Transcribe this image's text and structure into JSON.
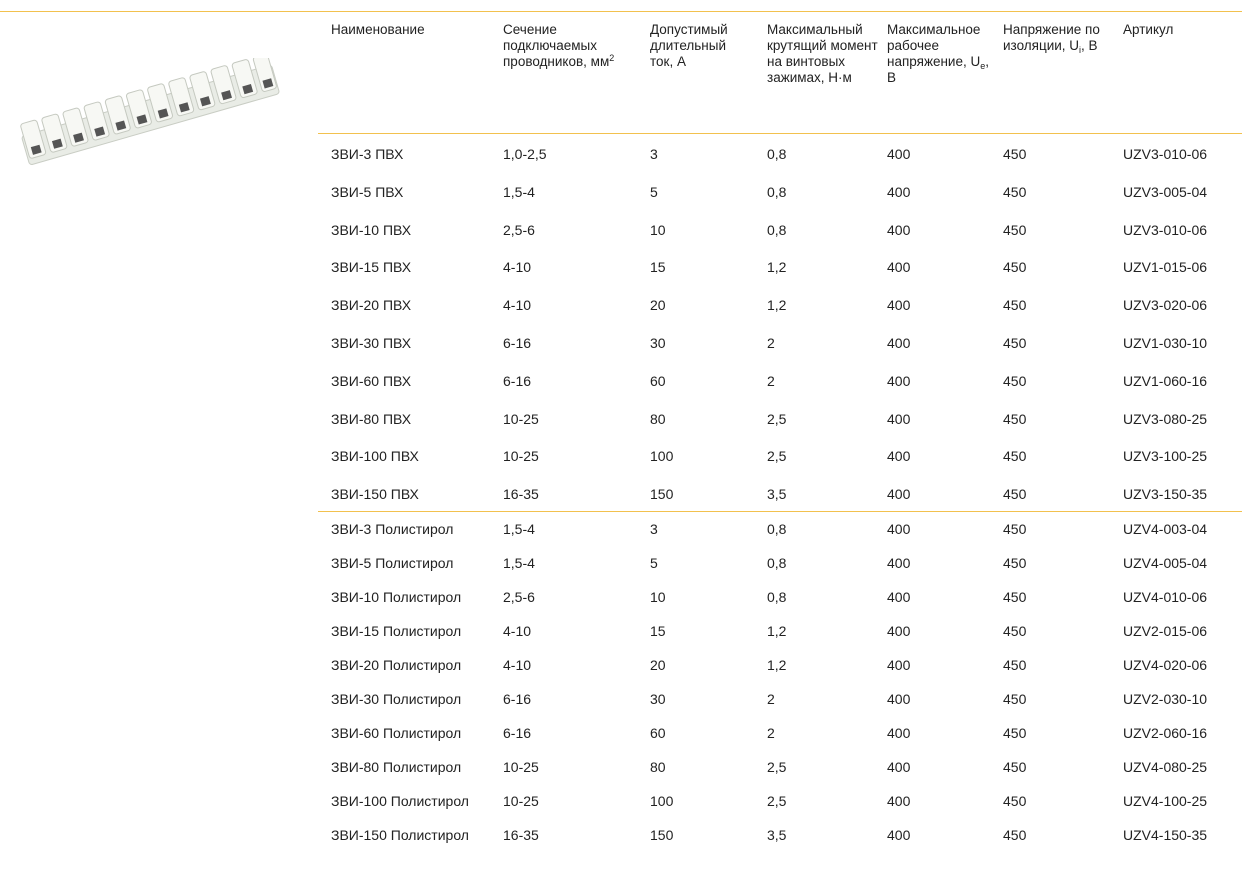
{
  "table": {
    "columns": [
      [
        "Наименование"
      ],
      [
        "Сечение подключаемых проводников, мм",
        "2"
      ],
      [
        "Допустимый длительный ток, А"
      ],
      [
        "Максимальный крутящий момент на винтовых зажимах, Н·м"
      ],
      [
        "Максимальное рабочее напряжение, U",
        "e",
        ", В"
      ],
      [
        "Напряжение по изоляции, U",
        "i",
        ", В"
      ],
      [
        "Артикул"
      ]
    ],
    "groups": [
      [
        [
          "ЗВИ-3 ПВХ",
          "1,0-2,5",
          "3",
          "0,8",
          "400",
          "450",
          "UZV3-010-06"
        ],
        [
          "ЗВИ-5 ПВХ",
          "1,5-4",
          "5",
          "0,8",
          "400",
          "450",
          "UZV3-005-04"
        ],
        [
          "ЗВИ-10 ПВХ",
          "2,5-6",
          "10",
          "0,8",
          "400",
          "450",
          "UZV3-010-06"
        ],
        [
          "ЗВИ-15 ПВХ",
          "4-10",
          "15",
          "1,2",
          "400",
          "450",
          "UZV1-015-06"
        ],
        [
          "ЗВИ-20 ПВХ",
          "4-10",
          "20",
          "1,2",
          "400",
          "450",
          "UZV3-020-06"
        ],
        [
          "ЗВИ-30 ПВХ",
          "6-16",
          "30",
          "2",
          "400",
          "450",
          "UZV1-030-10"
        ],
        [
          "ЗВИ-60 ПВХ",
          "6-16",
          "60",
          "2",
          "400",
          "450",
          "UZV1-060-16"
        ],
        [
          "ЗВИ-80 ПВХ",
          "10-25",
          "80",
          "2,5",
          "400",
          "450",
          "UZV3-080-25"
        ],
        [
          "ЗВИ-100 ПВХ",
          "10-25",
          "100",
          "2,5",
          "400",
          "450",
          "UZV3-100-25"
        ],
        [
          "ЗВИ-150 ПВХ",
          "16-35",
          "150",
          "3,5",
          "400",
          "450",
          "UZV3-150-35"
        ]
      ],
      [
        [
          "ЗВИ-3 Полистирол",
          "1,5-4",
          "3",
          "0,8",
          "400",
          "450",
          "UZV4-003-04"
        ],
        [
          "ЗВИ-5 Полистирол",
          "1,5-4",
          "5",
          "0,8",
          "400",
          "450",
          "UZV4-005-04"
        ],
        [
          "ЗВИ-10 Полистирол",
          "2,5-6",
          "10",
          "0,8",
          "400",
          "450",
          "UZV4-010-06"
        ],
        [
          "ЗВИ-15 Полистирол",
          "4-10",
          "15",
          "1,2",
          "400",
          "450",
          "UZV2-015-06"
        ],
        [
          "ЗВИ-20 Полистирол",
          "4-10",
          "20",
          "1,2",
          "400",
          "450",
          "UZV4-020-06"
        ],
        [
          "ЗВИ-30 Полистирол",
          "6-16",
          "30",
          "2",
          "400",
          "450",
          "UZV2-030-10"
        ],
        [
          "ЗВИ-60 Полистирол",
          "6-16",
          "60",
          "2",
          "400",
          "450",
          "UZV2-060-16"
        ],
        [
          "ЗВИ-80 Полистирол",
          "10-25",
          "80",
          "2,5",
          "400",
          "450",
          "UZV4-080-25"
        ],
        [
          "ЗВИ-100 Полистирол",
          "10-25",
          "100",
          "2,5",
          "400",
          "450",
          "UZV4-100-25"
        ],
        [
          "ЗВИ-150 Полистирол",
          "16-35",
          "150",
          "3,5",
          "400",
          "450",
          "UZV4-150-35"
        ]
      ]
    ]
  }
}
